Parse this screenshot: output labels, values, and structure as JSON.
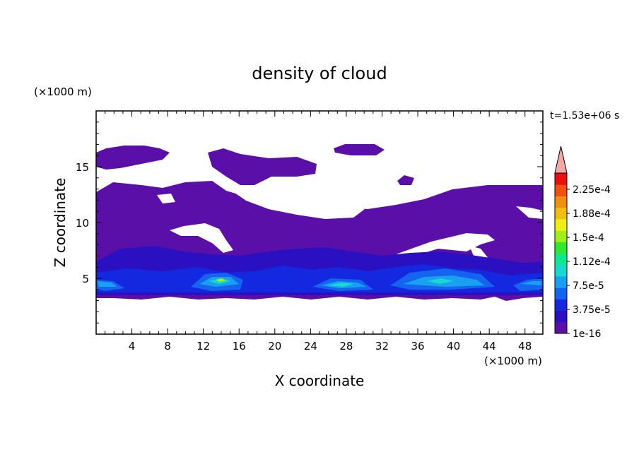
{
  "chart_data": {
    "type": "heatmap",
    "title": "density of cloud",
    "xlabel": "X coordinate",
    "ylabel": "Z coordinate",
    "x_unit": "(×1000 m)",
    "y_unit": "(×1000 m)",
    "time_label": "t=1.53e+06 s",
    "xlim": [
      0,
      50
    ],
    "ylim": [
      0,
      20
    ],
    "x_ticks": [
      4,
      8,
      12,
      16,
      20,
      24,
      28,
      32,
      36,
      40,
      44,
      48
    ],
    "y_ticks": [
      5,
      10,
      15
    ],
    "colorbar": {
      "labels": [
        "1e-16",
        "3.75e-5",
        "7.5e-5",
        "1.12e-4",
        "1.5e-4",
        "1.88e-4",
        "2.25e-4"
      ],
      "colors": [
        "#5a10a8",
        "#2a10c0",
        "#1428e0",
        "#1464f0",
        "#1aa0f0",
        "#18d8d0",
        "#10e890",
        "#30e830",
        "#a0f018",
        "#f0f010",
        "#f0c010",
        "#f09010",
        "#f05010",
        "#e81010"
      ],
      "extend_color": "#f4a8a8"
    },
    "regions": [
      {
        "level": 1,
        "name": "main-cloud-layer"
      },
      {
        "level": 1,
        "name": "upper-cloud-patches"
      },
      {
        "level": 3,
        "name": "mid-density-band"
      },
      {
        "level": 5,
        "name": "high-density-cores"
      }
    ]
  }
}
